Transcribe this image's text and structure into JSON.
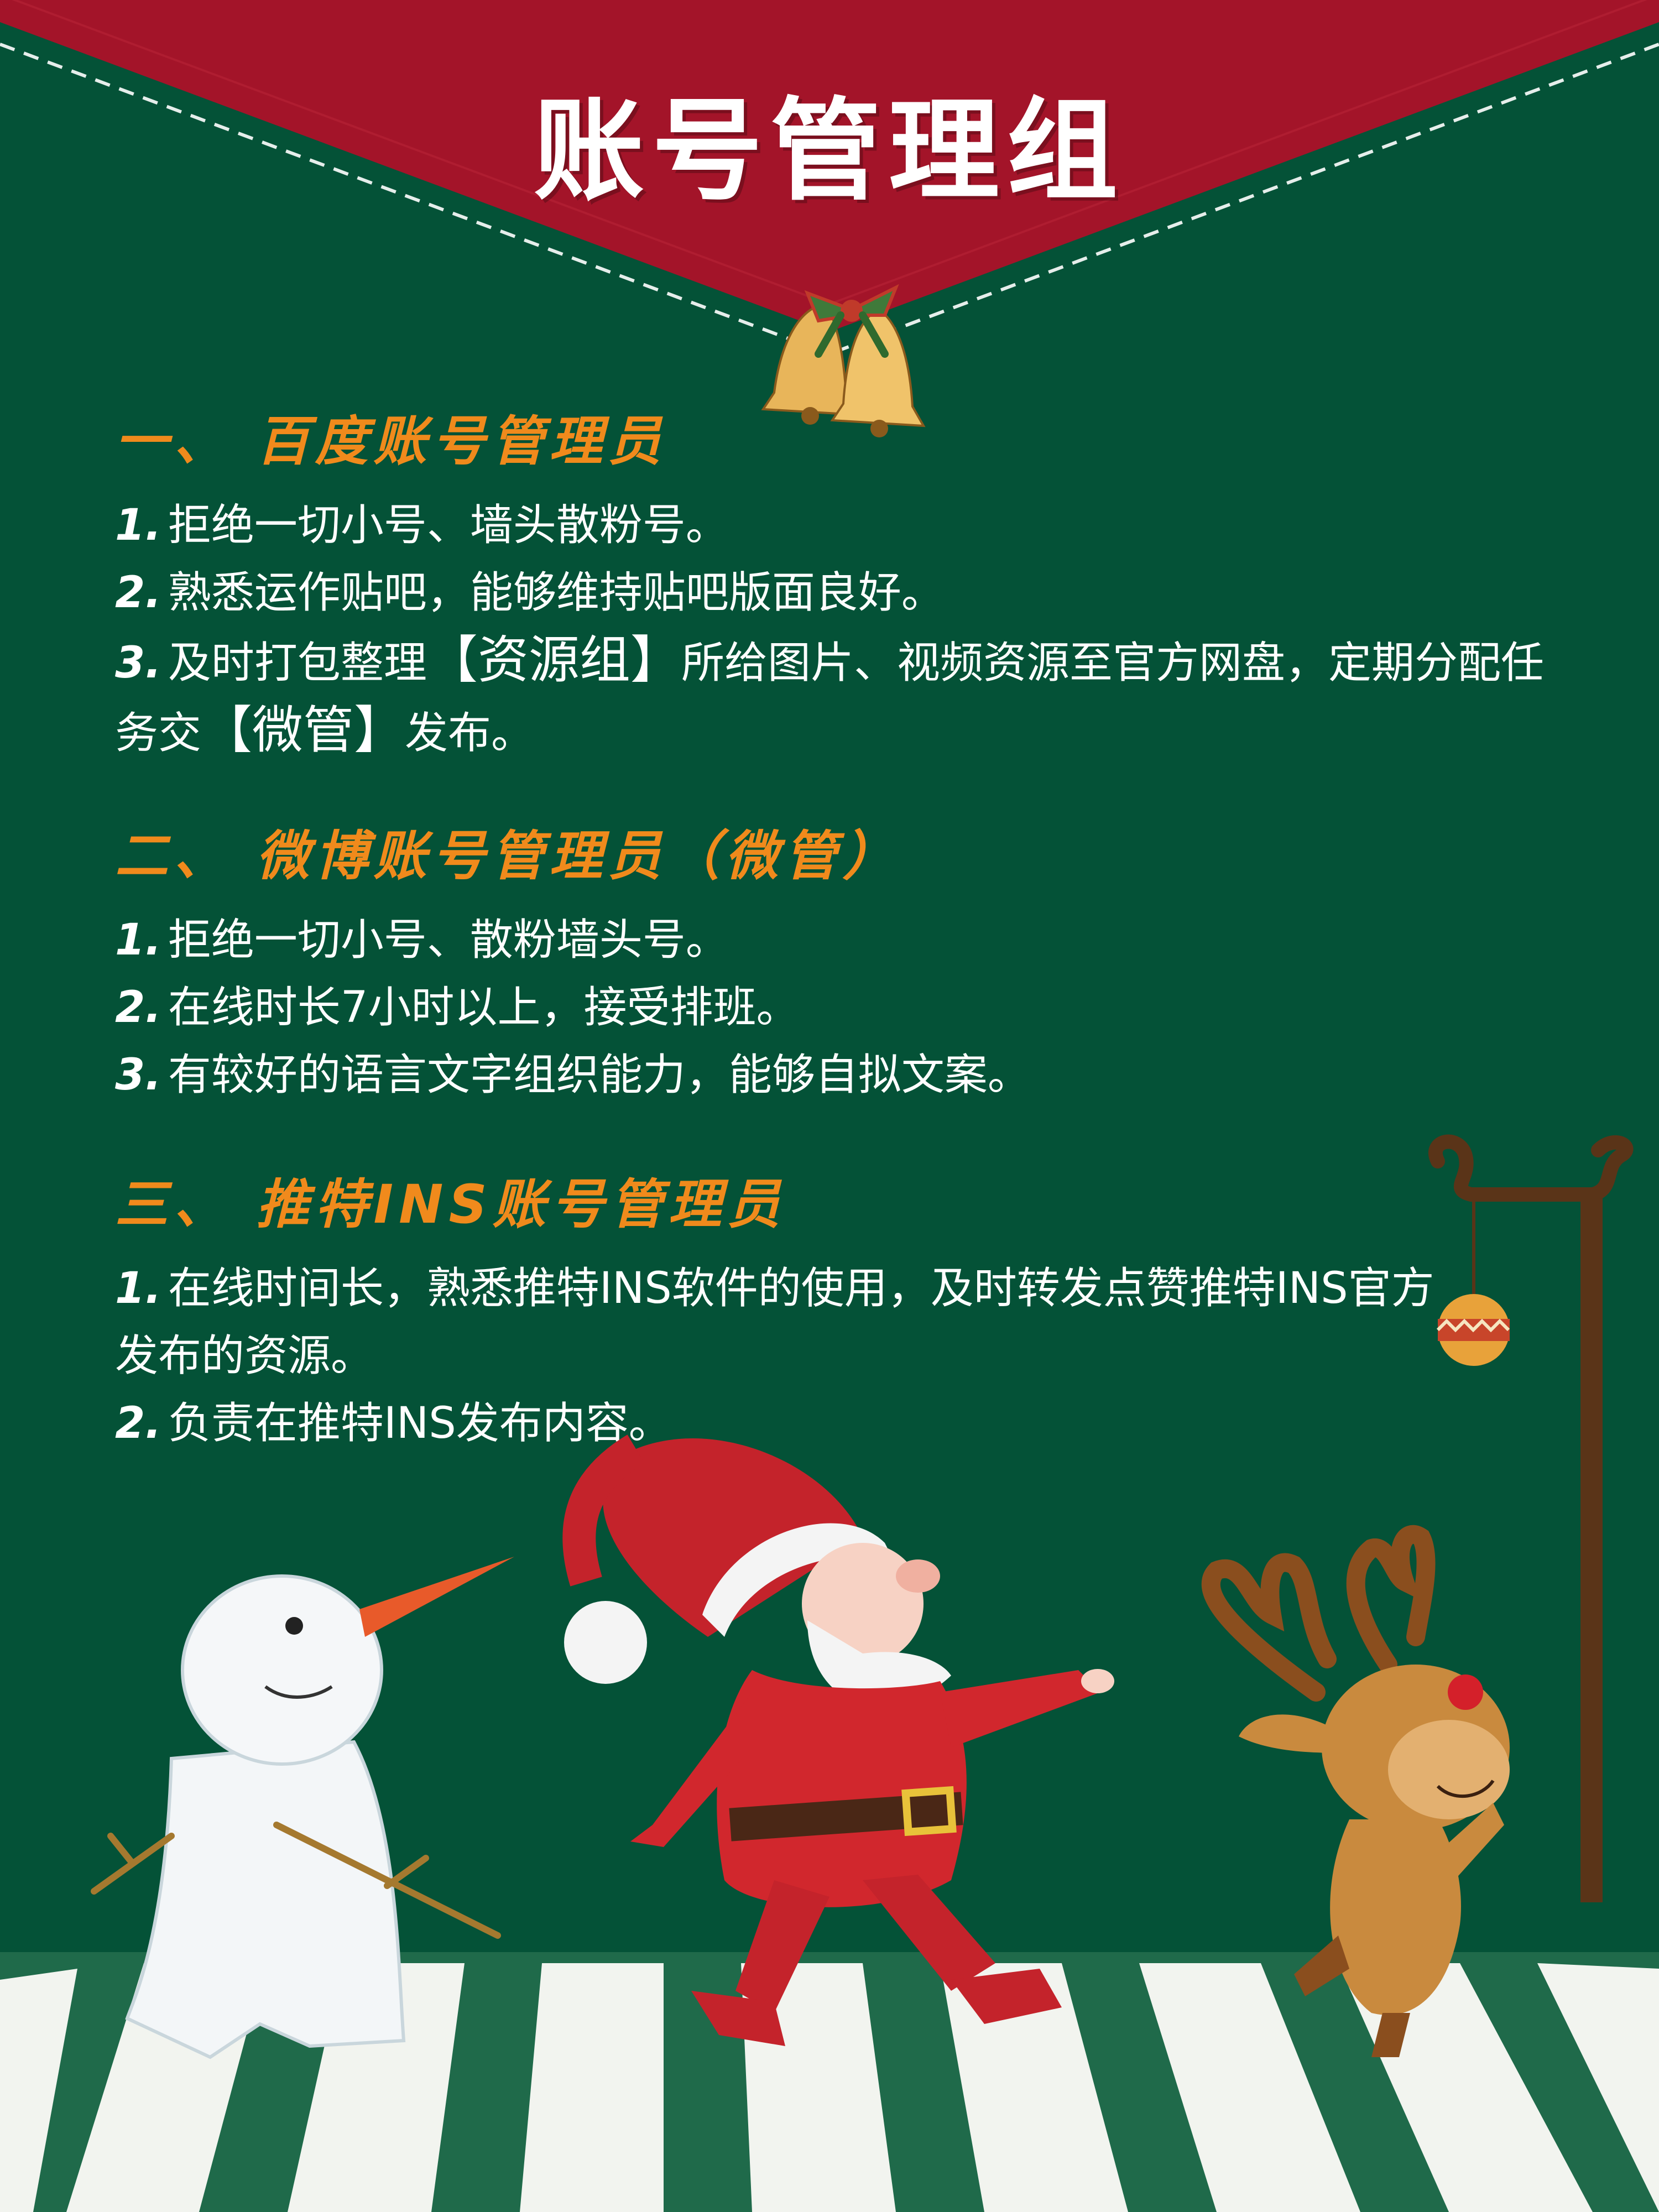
{
  "title": "账号管理组",
  "colors": {
    "background": "#045237",
    "banner": "#a31429",
    "heading": "#f08a1c",
    "text": "#ffffff"
  },
  "sections": [
    {
      "heading": "一、 百度账号管理员",
      "items": [
        {
          "num": "1.",
          "text": "拒绝一切小号、墙头散粉号。"
        },
        {
          "num": "2.",
          "text": "熟悉运作贴吧，能够维持贴吧版面良好。"
        },
        {
          "num": "3.",
          "pre": "及时打包整理",
          "em1": "【资源组】",
          "mid": "所给图片、视频资源至官方网盘，定期分配任务交",
          "em2": "【微管】",
          "post": "发布。"
        }
      ]
    },
    {
      "heading": "二、 微博账号管理员（微管）",
      "items": [
        {
          "num": "1.",
          "text": "拒绝一切小号、散粉墙头号。"
        },
        {
          "num": "2.",
          "text": "在线时长7小时以上，接受排班。"
        },
        {
          "num": "3.",
          "text": "有较好的语言文字组织能力，能够自拟文案。"
        }
      ]
    },
    {
      "heading": "三、 推特INS账号管理员",
      "items": [
        {
          "num": "1.",
          "text": "在线时间长，熟悉推特INS软件的使用，及时转发点赞推特INS官方发布的资源。"
        },
        {
          "num": "2.",
          "text": "负责在推特INS发布内容。"
        }
      ]
    }
  ],
  "illustration": [
    "bell-icon",
    "snowman-icon",
    "santa-icon",
    "reindeer-icon",
    "lamp-post-icon",
    "ornament-icon",
    "crosswalk"
  ]
}
